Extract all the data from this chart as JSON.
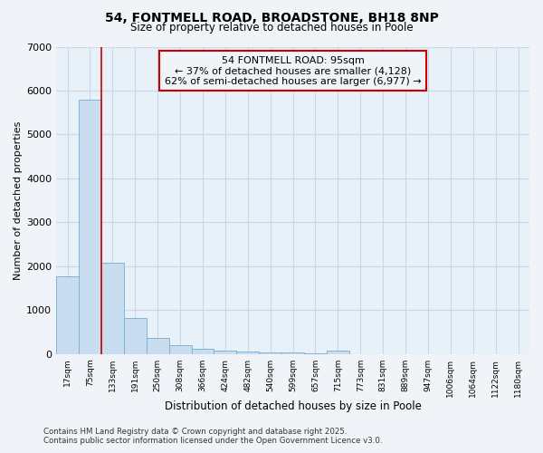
{
  "title": "54, FONTMELL ROAD, BROADSTONE, BH18 8NP",
  "subtitle": "Size of property relative to detached houses in Poole",
  "xlabel": "Distribution of detached houses by size in Poole",
  "ylabel": "Number of detached properties",
  "categories": [
    "17sqm",
    "75sqm",
    "133sqm",
    "191sqm",
    "250sqm",
    "308sqm",
    "366sqm",
    "424sqm",
    "482sqm",
    "540sqm",
    "599sqm",
    "657sqm",
    "715sqm",
    "773sqm",
    "831sqm",
    "889sqm",
    "947sqm",
    "1006sqm",
    "1064sqm",
    "1122sqm",
    "1180sqm"
  ],
  "values": [
    1780,
    5800,
    2070,
    820,
    360,
    210,
    115,
    80,
    65,
    45,
    30,
    20,
    70,
    0,
    0,
    0,
    0,
    0,
    0,
    0,
    0
  ],
  "bar_color": "#c9ddf0",
  "bar_edge_color": "#7eb3d8",
  "red_line_x": 1.5,
  "annotation_title": "54 FONTMELL ROAD: 95sqm",
  "annotation_line1": "← 37% of detached houses are smaller (4,128)",
  "annotation_line2": "62% of semi-detached houses are larger (6,977) →",
  "annotation_box_color": "#cc0000",
  "ylim": [
    0,
    7000
  ],
  "yticks": [
    0,
    1000,
    2000,
    3000,
    4000,
    5000,
    6000,
    7000
  ],
  "footer_line1": "Contains HM Land Registry data © Crown copyright and database right 2025.",
  "footer_line2": "Contains public sector information licensed under the Open Government Licence v3.0.",
  "bg_color": "#f0f4f8",
  "grid_color": "#c8d8e8",
  "plot_bg_color": "#e8f0f8"
}
